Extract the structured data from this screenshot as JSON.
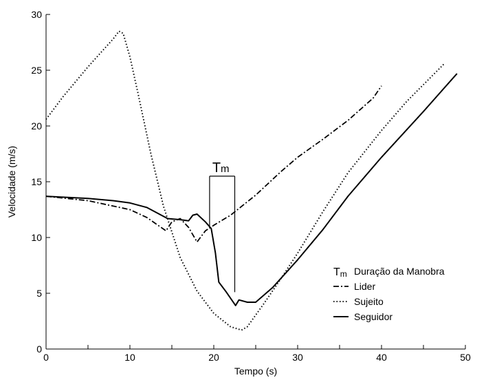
{
  "chart_data": {
    "type": "line",
    "xlabel": "Tempo (s)",
    "ylabel": "Velocidade (m/s)",
    "xlim": [
      0,
      50
    ],
    "ylim": [
      0,
      30
    ],
    "xticks": [
      0,
      10,
      20,
      30,
      40,
      50
    ],
    "yticks": [
      0,
      5,
      10,
      15,
      20,
      25,
      30
    ],
    "grid": false,
    "legend_position": "bottom-right",
    "legend_note": {
      "symbol": "T",
      "subscript": "m",
      "label": "Duração da Manobra"
    },
    "annotation": {
      "symbol": "T",
      "subscript": "m",
      "x_start": 19.5,
      "x_end": 22.5,
      "y_top": 15.5,
      "y_start_bottom": 10.8,
      "y_end_bottom": 5.1
    },
    "series": [
      {
        "name": "Lider",
        "style": "dashdot",
        "points": [
          [
            0,
            13.7
          ],
          [
            5,
            13.3
          ],
          [
            10,
            12.5
          ],
          [
            12,
            11.8
          ],
          [
            14.3,
            10.6
          ],
          [
            15,
            11.4
          ],
          [
            16,
            11.7
          ],
          [
            17,
            10.9
          ],
          [
            18,
            9.6
          ],
          [
            19,
            10.6
          ],
          [
            20,
            11.1
          ],
          [
            22,
            12.0
          ],
          [
            25,
            13.8
          ],
          [
            28,
            15.9
          ],
          [
            30,
            17.2
          ],
          [
            33,
            18.8
          ],
          [
            36,
            20.5
          ],
          [
            39,
            22.5
          ],
          [
            40,
            23.6
          ]
        ]
      },
      {
        "name": "Sujeito",
        "style": "dotted",
        "points": [
          [
            0,
            20.6
          ],
          [
            2,
            22.6
          ],
          [
            5,
            25.3
          ],
          [
            8,
            27.8
          ],
          [
            8.7,
            28.5
          ],
          [
            9.2,
            28.3
          ],
          [
            10,
            26.2
          ],
          [
            11,
            22.8
          ],
          [
            12.5,
            17.5
          ],
          [
            14,
            12.8
          ],
          [
            16,
            8.2
          ],
          [
            18,
            5.2
          ],
          [
            20,
            3.2
          ],
          [
            22,
            2.0
          ],
          [
            23.3,
            1.7
          ],
          [
            24,
            2.0
          ],
          [
            26,
            4.1
          ],
          [
            28,
            6.3
          ],
          [
            30,
            8.6
          ],
          [
            33,
            12.3
          ],
          [
            36,
            15.8
          ],
          [
            40,
            19.6
          ],
          [
            43,
            22.2
          ],
          [
            47.5,
            25.6
          ]
        ]
      },
      {
        "name": "Seguidor",
        "style": "solid",
        "points": [
          [
            0,
            13.7
          ],
          [
            5,
            13.5
          ],
          [
            8,
            13.3
          ],
          [
            10,
            13.1
          ],
          [
            12,
            12.7
          ],
          [
            14,
            11.9
          ],
          [
            14.5,
            11.7
          ],
          [
            16,
            11.6
          ],
          [
            17,
            11.5
          ],
          [
            17.5,
            12.0
          ],
          [
            18,
            12.1
          ],
          [
            19,
            11.4
          ],
          [
            19.7,
            10.8
          ],
          [
            20.2,
            8.6
          ],
          [
            20.6,
            6.0
          ],
          [
            21.5,
            5.1
          ],
          [
            22.6,
            3.9
          ],
          [
            23,
            4.4
          ],
          [
            24,
            4.2
          ],
          [
            25,
            4.2
          ],
          [
            27,
            5.5
          ],
          [
            30,
            8.0
          ],
          [
            33,
            10.7
          ],
          [
            36,
            13.7
          ],
          [
            40,
            17.2
          ],
          [
            45,
            21.3
          ],
          [
            49,
            24.7
          ]
        ]
      }
    ]
  }
}
